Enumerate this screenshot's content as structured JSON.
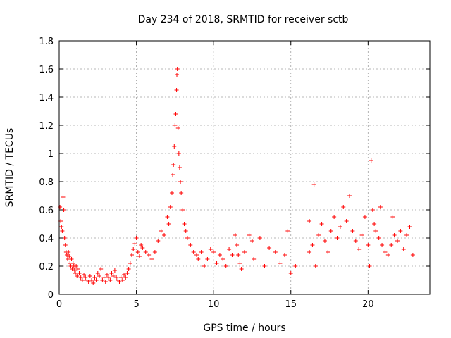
{
  "chart_data": {
    "type": "scatter",
    "title": "Day 234 of 2018, SRMTID for receiver sctb",
    "xlabel": "GPS time / hours",
    "ylabel": "SRMTID / TECUs",
    "xlim": [
      0,
      24
    ],
    "ylim": [
      0,
      1.8
    ],
    "x_ticks": [
      0,
      5,
      10,
      15,
      20
    ],
    "x_tick_labels": [
      "0",
      "5",
      "10",
      "15",
      "20"
    ],
    "y_ticks": [
      0,
      0.2,
      0.4,
      0.6,
      0.8,
      1,
      1.2,
      1.4,
      1.6,
      1.8
    ],
    "y_tick_labels": [
      "0",
      "0.2",
      "0.4",
      "0.6",
      "0.8",
      "1",
      "1.2",
      "1.4",
      "1.6",
      "1.8"
    ],
    "grid": true,
    "marker": "plus",
    "color": "#ff0000",
    "series": [
      {
        "name": "SRMTID",
        "points": [
          [
            0.05,
            0.62
          ],
          [
            0.1,
            0.52
          ],
          [
            0.15,
            0.48
          ],
          [
            0.2,
            0.45
          ],
          [
            0.25,
            0.69
          ],
          [
            0.3,
            0.6
          ],
          [
            0.35,
            0.4
          ],
          [
            0.4,
            0.35
          ],
          [
            0.45,
            0.3
          ],
          [
            0.5,
            0.28
          ],
          [
            0.55,
            0.25
          ],
          [
            0.6,
            0.3
          ],
          [
            0.65,
            0.27
          ],
          [
            0.7,
            0.22
          ],
          [
            0.75,
            0.2
          ],
          [
            0.8,
            0.25
          ],
          [
            0.85,
            0.18
          ],
          [
            0.9,
            0.22
          ],
          [
            0.95,
            0.2
          ],
          [
            1.0,
            0.17
          ],
          [
            1.05,
            0.15
          ],
          [
            1.1,
            0.2
          ],
          [
            1.15,
            0.13
          ],
          [
            1.2,
            0.18
          ],
          [
            1.3,
            0.15
          ],
          [
            1.4,
            0.12
          ],
          [
            1.5,
            0.1
          ],
          [
            1.6,
            0.14
          ],
          [
            1.7,
            0.12
          ],
          [
            1.8,
            0.1
          ],
          [
            1.9,
            0.09
          ],
          [
            2.0,
            0.13
          ],
          [
            2.1,
            0.1
          ],
          [
            2.2,
            0.08
          ],
          [
            2.3,
            0.12
          ],
          [
            2.4,
            0.1
          ],
          [
            2.5,
            0.15
          ],
          [
            2.6,
            0.13
          ],
          [
            2.7,
            0.18
          ],
          [
            2.8,
            0.1
          ],
          [
            2.9,
            0.12
          ],
          [
            3.0,
            0.09
          ],
          [
            3.1,
            0.14
          ],
          [
            3.2,
            0.12
          ],
          [
            3.3,
            0.1
          ],
          [
            3.4,
            0.15
          ],
          [
            3.5,
            0.13
          ],
          [
            3.6,
            0.17
          ],
          [
            3.7,
            0.12
          ],
          [
            3.8,
            0.1
          ],
          [
            3.9,
            0.09
          ],
          [
            4.0,
            0.12
          ],
          [
            4.1,
            0.1
          ],
          [
            4.2,
            0.14
          ],
          [
            4.3,
            0.12
          ],
          [
            4.4,
            0.15
          ],
          [
            4.5,
            0.18
          ],
          [
            4.6,
            0.22
          ],
          [
            4.7,
            0.28
          ],
          [
            4.8,
            0.32
          ],
          [
            4.9,
            0.36
          ],
          [
            5.0,
            0.4
          ],
          [
            5.1,
            0.3
          ],
          [
            5.2,
            0.27
          ],
          [
            5.3,
            0.35
          ],
          [
            5.4,
            0.33
          ],
          [
            5.6,
            0.3
          ],
          [
            5.8,
            0.28
          ],
          [
            6.0,
            0.25
          ],
          [
            6.2,
            0.3
          ],
          [
            6.4,
            0.38
          ],
          [
            6.6,
            0.45
          ],
          [
            6.8,
            0.42
          ],
          [
            7.0,
            0.55
          ],
          [
            7.1,
            0.5
          ],
          [
            7.2,
            0.62
          ],
          [
            7.3,
            0.72
          ],
          [
            7.35,
            0.85
          ],
          [
            7.4,
            0.92
          ],
          [
            7.45,
            1.05
          ],
          [
            7.5,
            1.2
          ],
          [
            7.55,
            1.28
          ],
          [
            7.6,
            1.45
          ],
          [
            7.62,
            1.56
          ],
          [
            7.65,
            1.6
          ],
          [
            7.7,
            1.18
          ],
          [
            7.75,
            1.0
          ],
          [
            7.8,
            0.9
          ],
          [
            7.85,
            0.8
          ],
          [
            7.9,
            0.72
          ],
          [
            8.0,
            0.6
          ],
          [
            8.1,
            0.5
          ],
          [
            8.2,
            0.45
          ],
          [
            8.3,
            0.4
          ],
          [
            8.5,
            0.35
          ],
          [
            8.7,
            0.3
          ],
          [
            8.9,
            0.28
          ],
          [
            9.0,
            0.25
          ],
          [
            9.2,
            0.3
          ],
          [
            9.4,
            0.2
          ],
          [
            9.6,
            0.25
          ],
          [
            9.8,
            0.32
          ],
          [
            10.0,
            0.3
          ],
          [
            10.2,
            0.22
          ],
          [
            10.4,
            0.28
          ],
          [
            10.6,
            0.25
          ],
          [
            10.8,
            0.2
          ],
          [
            11.0,
            0.32
          ],
          [
            11.2,
            0.28
          ],
          [
            11.4,
            0.42
          ],
          [
            11.5,
            0.35
          ],
          [
            11.6,
            0.28
          ],
          [
            11.7,
            0.22
          ],
          [
            11.8,
            0.18
          ],
          [
            12.0,
            0.3
          ],
          [
            12.3,
            0.42
          ],
          [
            12.6,
            0.25
          ],
          [
            13.0,
            0.4
          ],
          [
            13.3,
            0.2
          ],
          [
            13.6,
            0.33
          ],
          [
            14.0,
            0.3
          ],
          [
            14.3,
            0.22
          ],
          [
            14.6,
            0.28
          ],
          [
            14.8,
            0.45
          ],
          [
            15.0,
            0.15
          ],
          [
            15.3,
            0.2
          ],
          [
            16.2,
            0.3
          ],
          [
            16.4,
            0.35
          ],
          [
            16.6,
            0.2
          ],
          [
            16.8,
            0.42
          ],
          [
            17.0,
            0.5
          ],
          [
            17.2,
            0.38
          ],
          [
            17.4,
            0.3
          ],
          [
            17.6,
            0.45
          ],
          [
            17.8,
            0.55
          ],
          [
            18.0,
            0.4
          ],
          [
            18.2,
            0.48
          ],
          [
            18.4,
            0.62
          ],
          [
            18.6,
            0.52
          ],
          [
            18.8,
            0.7
          ],
          [
            19.0,
            0.45
          ],
          [
            19.2,
            0.38
          ],
          [
            19.4,
            0.32
          ],
          [
            19.6,
            0.42
          ],
          [
            19.8,
            0.55
          ],
          [
            20.0,
            0.35
          ],
          [
            20.1,
            0.2
          ],
          [
            20.2,
            0.95
          ],
          [
            20.3,
            0.6
          ],
          [
            20.4,
            0.5
          ],
          [
            20.5,
            0.45
          ],
          [
            20.7,
            0.4
          ],
          [
            20.9,
            0.35
          ],
          [
            21.1,
            0.3
          ],
          [
            21.3,
            0.28
          ],
          [
            21.5,
            0.35
          ],
          [
            21.7,
            0.42
          ],
          [
            21.9,
            0.38
          ],
          [
            22.1,
            0.45
          ],
          [
            22.3,
            0.32
          ],
          [
            22.5,
            0.42
          ],
          [
            22.7,
            0.48
          ],
          [
            22.9,
            0.28
          ],
          [
            20.8,
            0.62
          ],
          [
            21.6,
            0.55
          ],
          [
            16.5,
            0.78
          ],
          [
            16.2,
            0.52
          ],
          [
            12.5,
            0.38
          ]
        ]
      }
    ]
  }
}
